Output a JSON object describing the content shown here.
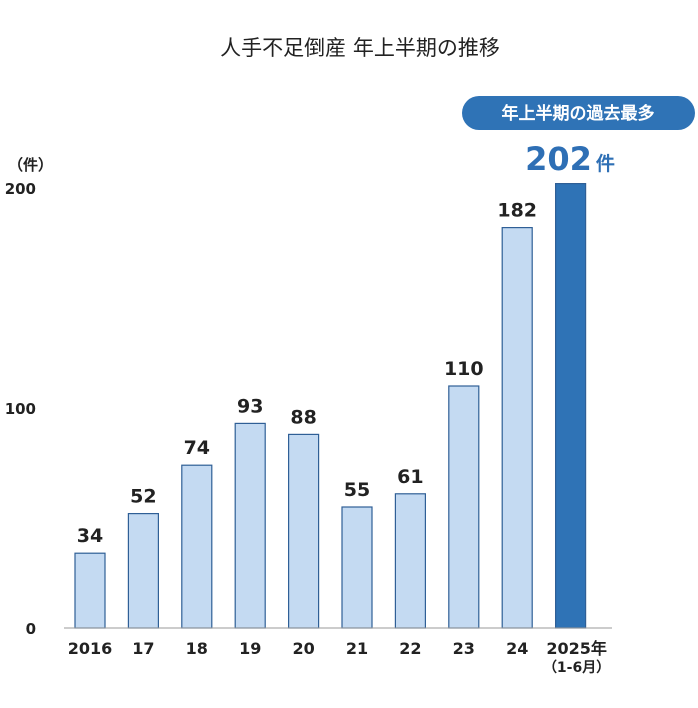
{
  "chart_data": {
    "type": "bar",
    "title": "人手不足倒産 年上半期の推移",
    "y_unit": "（件）",
    "ylim": [
      0,
      200
    ],
    "yticks": [
      0,
      100,
      200
    ],
    "categories": [
      "2016",
      "17",
      "18",
      "19",
      "20",
      "21",
      "22",
      "23",
      "24",
      "2025年"
    ],
    "last_category_note": "（1-6月）",
    "values": [
      34,
      52,
      74,
      93,
      88,
      55,
      61,
      110,
      182,
      202
    ],
    "highlight": {
      "index": 9,
      "badge": "年上半期の過去最多",
      "value": "202",
      "suffix": "件"
    },
    "grid": false,
    "colors": {
      "bar": "#c4daf2",
      "bar_border": "#2f5f96",
      "highlight_bar": "#2f73b6",
      "badge_bg": "#2f73b6",
      "axis": "#999999"
    }
  }
}
